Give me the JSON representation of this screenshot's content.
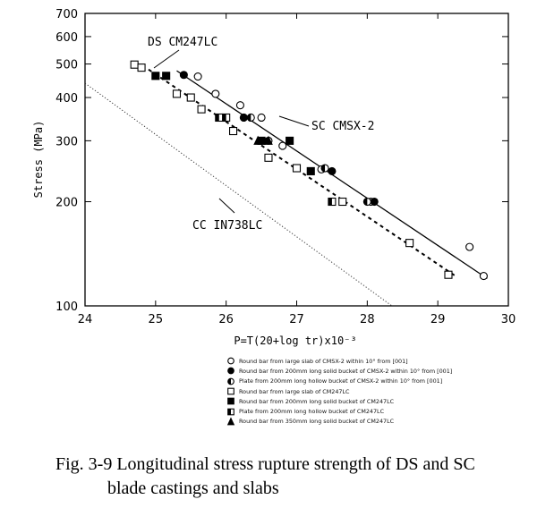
{
  "chart_data": {
    "type": "scatter",
    "xlabel": "P=T(20+log tr)x10⁻³",
    "ylabel": "Stress (MPa)",
    "xlim": [
      24,
      30
    ],
    "ylim": [
      100,
      700
    ],
    "yscale": "log",
    "x_ticks": [
      "24",
      "25",
      "26",
      "27",
      "28",
      "29",
      "30"
    ],
    "y_ticks": [
      {
        "value": 100,
        "label": "100"
      },
      {
        "value": 200,
        "label": "200"
      },
      {
        "value": 300,
        "label": "300"
      },
      {
        "value": 400,
        "label": "400"
      },
      {
        "value": 500,
        "label": "500"
      },
      {
        "value": 600,
        "label": "600"
      },
      {
        "value": 700,
        "label": "700"
      }
    ],
    "grid": false,
    "series": [
      {
        "name": "Round bar from large slab of CMSX-2 within 10° from [001]",
        "marker": "open-circle",
        "points": [
          [
            25.6,
            460
          ],
          [
            25.85,
            410
          ],
          [
            26.2,
            380
          ],
          [
            26.5,
            350
          ],
          [
            26.8,
            290
          ],
          [
            27.35,
            248
          ],
          [
            28.05,
            200
          ],
          [
            29.45,
            148
          ],
          [
            29.65,
            122
          ]
        ]
      },
      {
        "name": "Round bar from 200mm long solid bucket of CMSX-2 within 10° from [001]",
        "marker": "filled-circle",
        "points": [
          [
            25.4,
            465
          ],
          [
            26.25,
            350
          ],
          [
            27.5,
            245
          ],
          [
            28.1,
            200
          ]
        ]
      },
      {
        "name": "Plate from 200mm long hollow bucket of CMSX-2 within 10° from [001]",
        "marker": "half-circle",
        "points": [
          [
            26.35,
            350
          ],
          [
            26.6,
            300
          ],
          [
            27.4,
            250
          ],
          [
            28.0,
            200
          ]
        ]
      },
      {
        "name": "Round bar from large slab of CM247LC",
        "marker": "open-square",
        "points": [
          [
            24.7,
            498
          ],
          [
            24.8,
            488
          ],
          [
            25.3,
            410
          ],
          [
            25.5,
            400
          ],
          [
            25.65,
            370
          ],
          [
            26.1,
            320
          ],
          [
            26.6,
            268
          ],
          [
            27.0,
            250
          ],
          [
            27.65,
            200
          ],
          [
            28.6,
            152
          ],
          [
            29.15,
            123
          ]
        ]
      },
      {
        "name": "Round bar from 200mm long solid bucket of CM247LC",
        "marker": "filled-square",
        "points": [
          [
            25.0,
            462
          ],
          [
            25.15,
            462
          ],
          [
            26.5,
            300
          ],
          [
            26.9,
            300
          ],
          [
            27.2,
            245
          ]
        ]
      },
      {
        "name": "Plate from 200mm long hollow bucket of CM247LC",
        "marker": "half-square",
        "points": [
          [
            25.9,
            350
          ],
          [
            26.0,
            350
          ],
          [
            27.5,
            200
          ]
        ]
      },
      {
        "name": "Round bar from 350mm long solid bucket of CM247LC",
        "marker": "filled-triangle",
        "points": [
          [
            26.45,
            300
          ],
          [
            26.6,
            300
          ]
        ]
      }
    ],
    "lines": [
      {
        "name": "SC CMSX-2",
        "style": "solid",
        "points": [
          [
            25.3,
            478
          ],
          [
            29.7,
            120
          ]
        ]
      },
      {
        "name": "DS CM247LC",
        "style": "dashed",
        "points": [
          [
            24.9,
            482
          ],
          [
            29.25,
            122
          ]
        ]
      },
      {
        "name": "CC IN738LC",
        "style": "dotted",
        "points": [
          [
            24.0,
            440
          ],
          [
            28.35,
            100
          ]
        ]
      }
    ],
    "annotations": [
      "DS CM247LC",
      "SC CMSX-2",
      "CC IN738LC"
    ]
  },
  "legend": [
    {
      "marker": "open-circle",
      "text": "Round bar from large slab of CMSX-2 within 10° from [001]"
    },
    {
      "marker": "filled-circle",
      "text": "Round bar from 200mm long solid bucket of CMSX-2 within 10° from [001]"
    },
    {
      "marker": "half-circle",
      "text": "Plate from 200mm long hollow bucket of CMSX-2 within 10° from [001]"
    },
    {
      "marker": "open-square",
      "text": "Round bar from large slab of CM247LC"
    },
    {
      "marker": "filled-square",
      "text": "Round bar from 200mm long solid bucket of CM247LC"
    },
    {
      "marker": "half-square",
      "text": "Plate from 200mm long hollow bucket of CM247LC"
    },
    {
      "marker": "filled-triangle",
      "text": "Round bar from 350mm long solid bucket of CM247LC"
    }
  ],
  "caption": {
    "line1": "Fig. 3-9 Longitudinal stress rupture strength of DS and SC",
    "line2": "blade castings and slabs"
  }
}
